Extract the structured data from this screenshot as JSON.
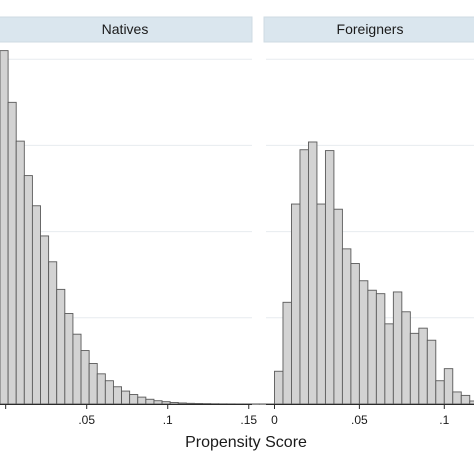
{
  "chart_data": {
    "type": "bar",
    "subtype": "histogram",
    "xlabel": "Propensity Score",
    "ylabel": "",
    "grid": true,
    "legend": "none",
    "bin_width": 0.005,
    "x_ticks": [
      0,
      0.05,
      0.1,
      0.15
    ],
    "panels": [
      {
        "title": "Natives",
        "xlim": [
          -0.0035,
          0.152
        ],
        "ylim": [
          0,
          42
        ],
        "tick_labels": [
          ".05",
          ".1",
          ".15"
        ],
        "bins_start": -0.0035,
        "values": [
          41.0,
          35.0,
          30.5,
          26.5,
          23.0,
          19.5,
          16.5,
          13.3,
          10.5,
          8.1,
          6.2,
          4.7,
          3.5,
          2.7,
          2.0,
          1.5,
          1.1,
          0.8,
          0.55,
          0.38,
          0.27,
          0.18,
          0.12,
          0.08,
          0.06,
          0.045,
          0.03,
          0.02,
          0.015,
          0.01,
          0.01,
          0.008,
          0.008,
          0.006,
          0.006,
          0.005,
          0.005,
          0.004,
          0.004,
          0.003,
          0.003,
          0.002,
          0.002
        ]
      },
      {
        "title": "Foreigners",
        "xlim": [
          -0.005,
          0.1175
        ],
        "ylim": [
          0,
          42
        ],
        "tick_labels": [
          "0",
          ".05",
          ".1"
        ],
        "bins_start": 0.0,
        "values": [
          3.8,
          11.8,
          23.2,
          29.5,
          30.4,
          23.2,
          29.4,
          22.6,
          18.0,
          16.3,
          14.3,
          13.2,
          12.8,
          9.3,
          13.0,
          10.7,
          8.2,
          8.8,
          7.4,
          2.7,
          4.1,
          1.4,
          1.0,
          0.35,
          0.55,
          1.4,
          2.2,
          0,
          0,
          0,
          0,
          0,
          0,
          0,
          0,
          0,
          0,
          0.8
        ]
      }
    ]
  }
}
